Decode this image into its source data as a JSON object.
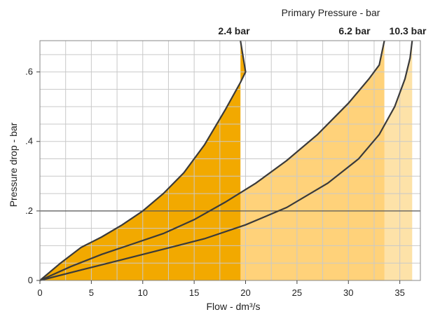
{
  "chart_data": {
    "type": "area",
    "title": "Primary Pressure - bar",
    "xlabel": "Flow - dm³/s",
    "ylabel": "Pressure drop - bar",
    "xlim": [
      0,
      37
    ],
    "ylim": [
      0,
      0.69
    ],
    "x_ticks": [
      {
        "value": 0,
        "label": "0"
      },
      {
        "value": 5,
        "label": "5"
      },
      {
        "value": 10,
        "label": "10"
      },
      {
        "value": 15,
        "label": "15"
      },
      {
        "value": 20,
        "label": "20"
      },
      {
        "value": 25,
        "label": "25"
      },
      {
        "value": 30,
        "label": "30"
      },
      {
        "value": 35,
        "label": "35"
      }
    ],
    "y_ticks": [
      {
        "value": 0,
        "label": "0"
      },
      {
        "value": 0.2,
        "label": ".2"
      },
      {
        "value": 0.4,
        "label": ".4"
      },
      {
        "value": 0.6,
        "label": ".6"
      }
    ],
    "grid": true,
    "series": [
      {
        "name": "2.4 bar",
        "color": "#f2a900",
        "points": [
          [
            0,
            0
          ],
          [
            2,
            0.05
          ],
          [
            4,
            0.095
          ],
          [
            6,
            0.125
          ],
          [
            8,
            0.16
          ],
          [
            10,
            0.2
          ],
          [
            12,
            0.25
          ],
          [
            14,
            0.31
          ],
          [
            16,
            0.39
          ],
          [
            18,
            0.49
          ],
          [
            19.5,
            0.57
          ],
          [
            20,
            0.6
          ],
          [
            19.5,
            0.69
          ]
        ]
      },
      {
        "name": "6.2 bar",
        "color": "#ffd27a",
        "points": [
          [
            0,
            0
          ],
          [
            3,
            0.04
          ],
          [
            6,
            0.075
          ],
          [
            9,
            0.105
          ],
          [
            12,
            0.135
          ],
          [
            15,
            0.175
          ],
          [
            18,
            0.225
          ],
          [
            21,
            0.28
          ],
          [
            24,
            0.345
          ],
          [
            27,
            0.42
          ],
          [
            30,
            0.51
          ],
          [
            32,
            0.58
          ],
          [
            33,
            0.62
          ],
          [
            33.5,
            0.69
          ]
        ]
      },
      {
        "name": "10.3 bar",
        "color": "#fde2a8",
        "points": [
          [
            0,
            0
          ],
          [
            4,
            0.03
          ],
          [
            8,
            0.06
          ],
          [
            12,
            0.09
          ],
          [
            16,
            0.12
          ],
          [
            20,
            0.16
          ],
          [
            24,
            0.21
          ],
          [
            28,
            0.28
          ],
          [
            31,
            0.35
          ],
          [
            33,
            0.42
          ],
          [
            34.5,
            0.5
          ],
          [
            35.5,
            0.58
          ],
          [
            36,
            0.64
          ],
          [
            36.2,
            0.69
          ]
        ]
      }
    ],
    "line_color": "#3a3a3a"
  }
}
